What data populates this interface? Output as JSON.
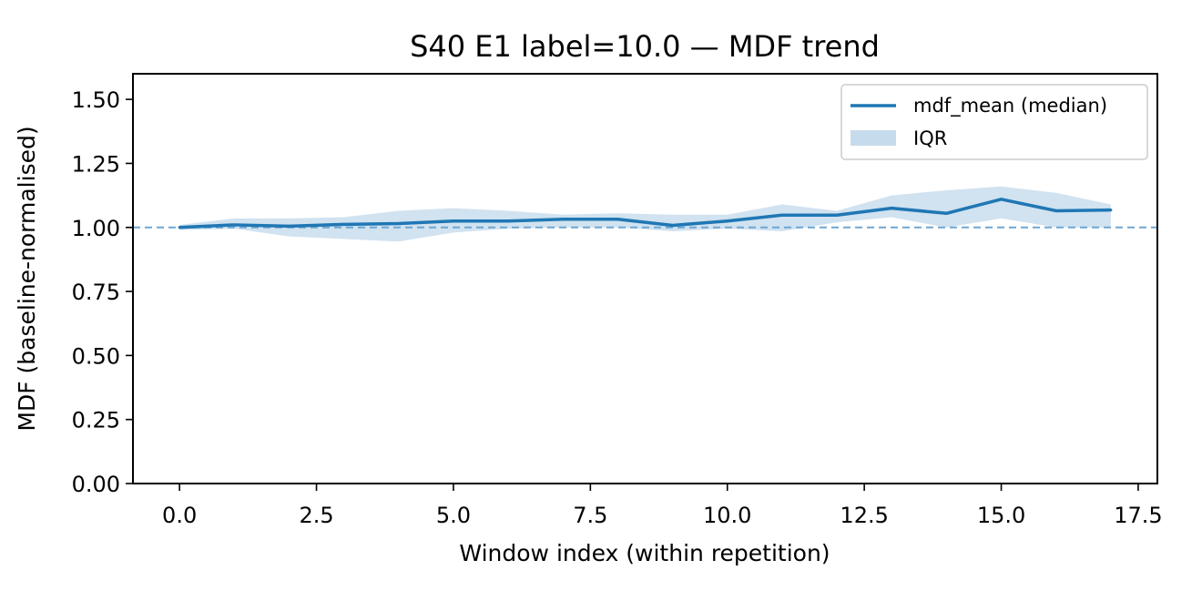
{
  "chart_data": {
    "type": "line",
    "title": "S40 E1 label=10.0 — MDF trend",
    "xlabel": "Window index (within repetition)",
    "ylabel": "MDF (baseline-normalised)",
    "xlim": [
      -0.85,
      17.85
    ],
    "ylim": [
      0.0,
      1.6
    ],
    "xticks": [
      0.0,
      2.5,
      5.0,
      7.5,
      10.0,
      12.5,
      15.0,
      17.5
    ],
    "xtick_labels": [
      "0.0",
      "2.5",
      "5.0",
      "7.5",
      "10.0",
      "12.5",
      "15.0",
      "17.5"
    ],
    "yticks": [
      0.0,
      0.25,
      0.5,
      0.75,
      1.0,
      1.25,
      1.5
    ],
    "ytick_labels": [
      "0.00",
      "0.25",
      "0.50",
      "0.75",
      "1.00",
      "1.25",
      "1.50"
    ],
    "grid": false,
    "legend_position": "upper right",
    "reference_line": {
      "y": 1.0,
      "style": "dashed",
      "color": "#6fa6d1"
    },
    "series": [
      {
        "name": "mdf_mean (median)",
        "kind": "line",
        "color": "#1f77b4",
        "x": [
          0,
          1,
          2,
          3,
          4,
          5,
          6,
          7,
          8,
          9,
          10,
          11,
          12,
          13,
          14,
          15,
          16,
          17
        ],
        "y": [
          1.0,
          1.01,
          1.005,
          1.012,
          1.015,
          1.025,
          1.025,
          1.032,
          1.032,
          1.008,
          1.025,
          1.048,
          1.048,
          1.075,
          1.055,
          1.11,
          1.065,
          1.068
        ]
      },
      {
        "name": "IQR",
        "kind": "band",
        "color": "#c6dbec",
        "x": [
          0,
          1,
          2,
          3,
          4,
          5,
          6,
          7,
          8,
          9,
          10,
          11,
          12,
          13,
          14,
          15,
          16,
          17
        ],
        "lower": [
          0.99,
          0.995,
          0.965,
          0.955,
          0.945,
          0.98,
          0.995,
          1.0,
          1.0,
          0.985,
          0.995,
          0.985,
          1.02,
          1.04,
          1.0,
          1.035,
          1.0,
          1.0
        ],
        "upper": [
          1.01,
          1.035,
          1.035,
          1.04,
          1.065,
          1.075,
          1.065,
          1.05,
          1.055,
          1.05,
          1.05,
          1.09,
          1.065,
          1.125,
          1.145,
          1.16,
          1.135,
          1.09
        ]
      }
    ]
  }
}
